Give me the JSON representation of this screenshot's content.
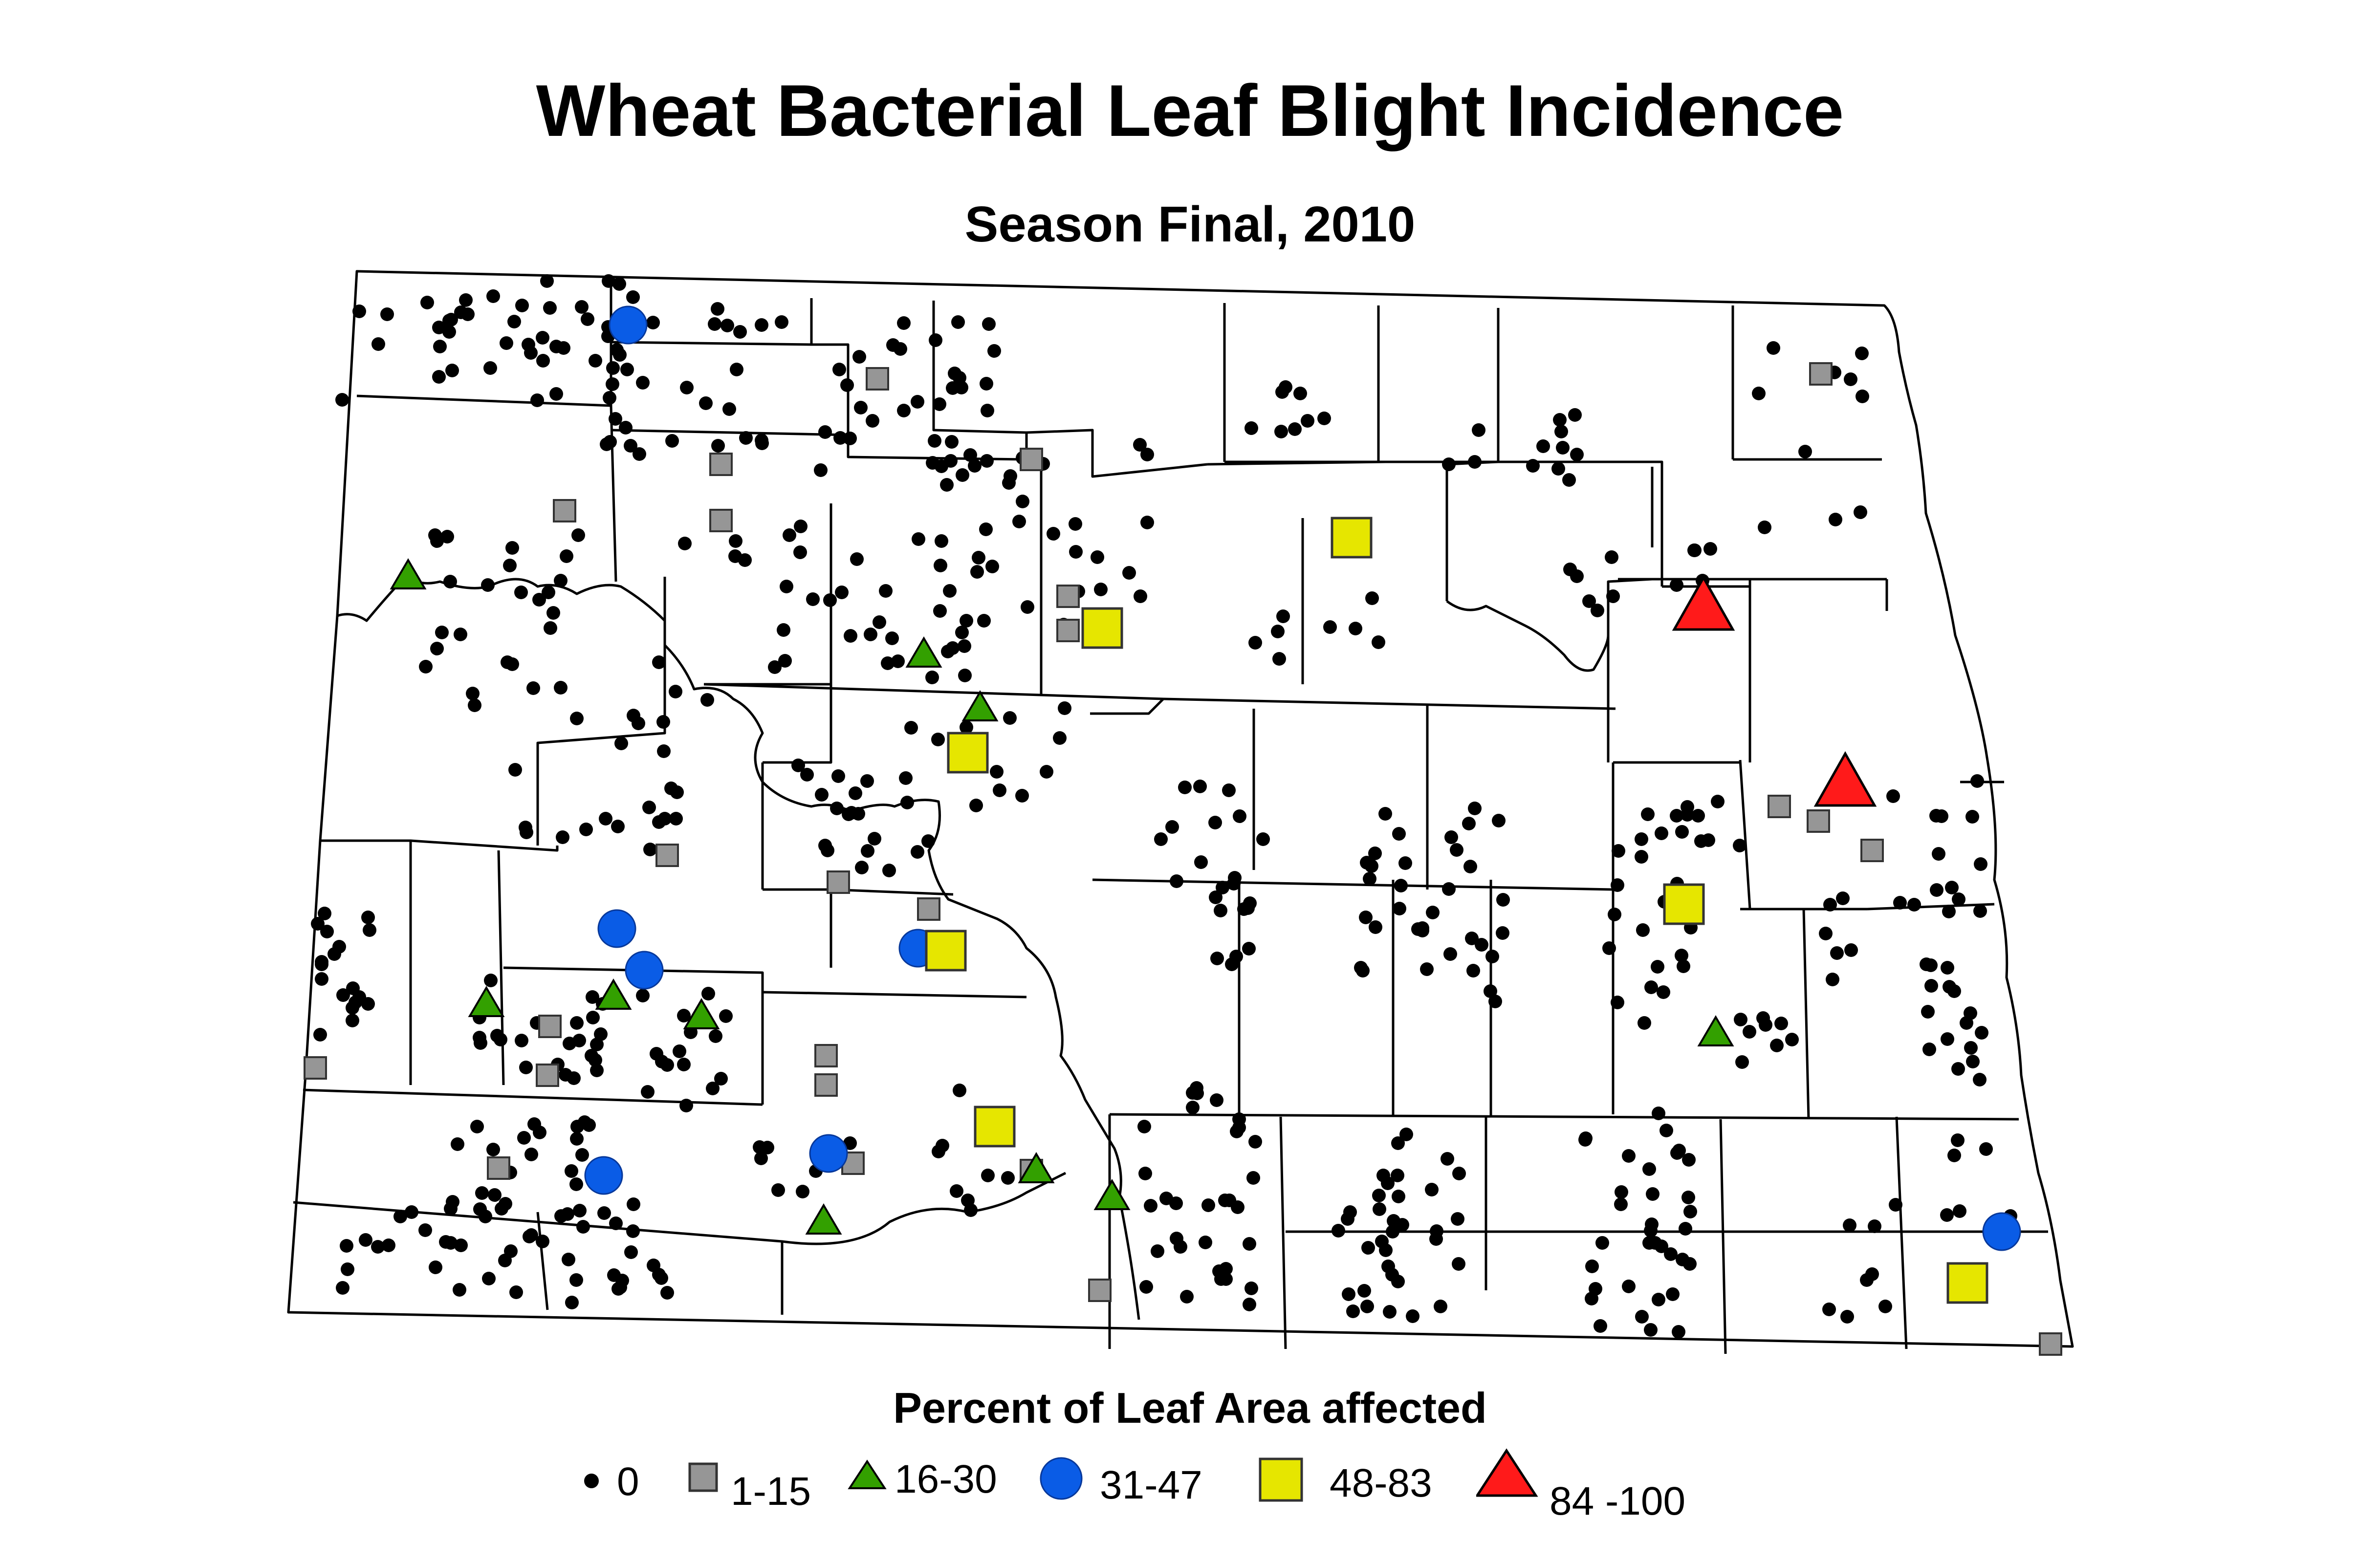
{
  "title": "Wheat Bacterial Leaf Blight Incidence",
  "subtitle": "Season Final, 2010",
  "legend": {
    "title": "Percent of Leaf Area affected",
    "items": [
      {
        "label": "0",
        "symbol": "dot-icon",
        "color": "#000000"
      },
      {
        "label": "1-15",
        "symbol": "square-icon",
        "color": "#969696"
      },
      {
        "label": "16-30",
        "symbol": "triangle-icon",
        "color": "#33a000"
      },
      {
        "label": "31-47",
        "symbol": "circle-icon",
        "color": "#0a5ce6"
      },
      {
        "label": "48-83",
        "symbol": "square-icon",
        "color": "#e6e600"
      },
      {
        "label": "84 -100",
        "symbol": "triangle-icon",
        "color": "#ff1a1a"
      }
    ]
  },
  "colors": {
    "background": "#ffffff",
    "county_lines": "#000000",
    "zero": "#000000",
    "class_1_15": "#969696",
    "class_16_30": "#33a000",
    "class_31_47": "#0a5ce6",
    "class_48_83": "#e6e600",
    "class_84_100": "#ff1a1a"
  }
}
